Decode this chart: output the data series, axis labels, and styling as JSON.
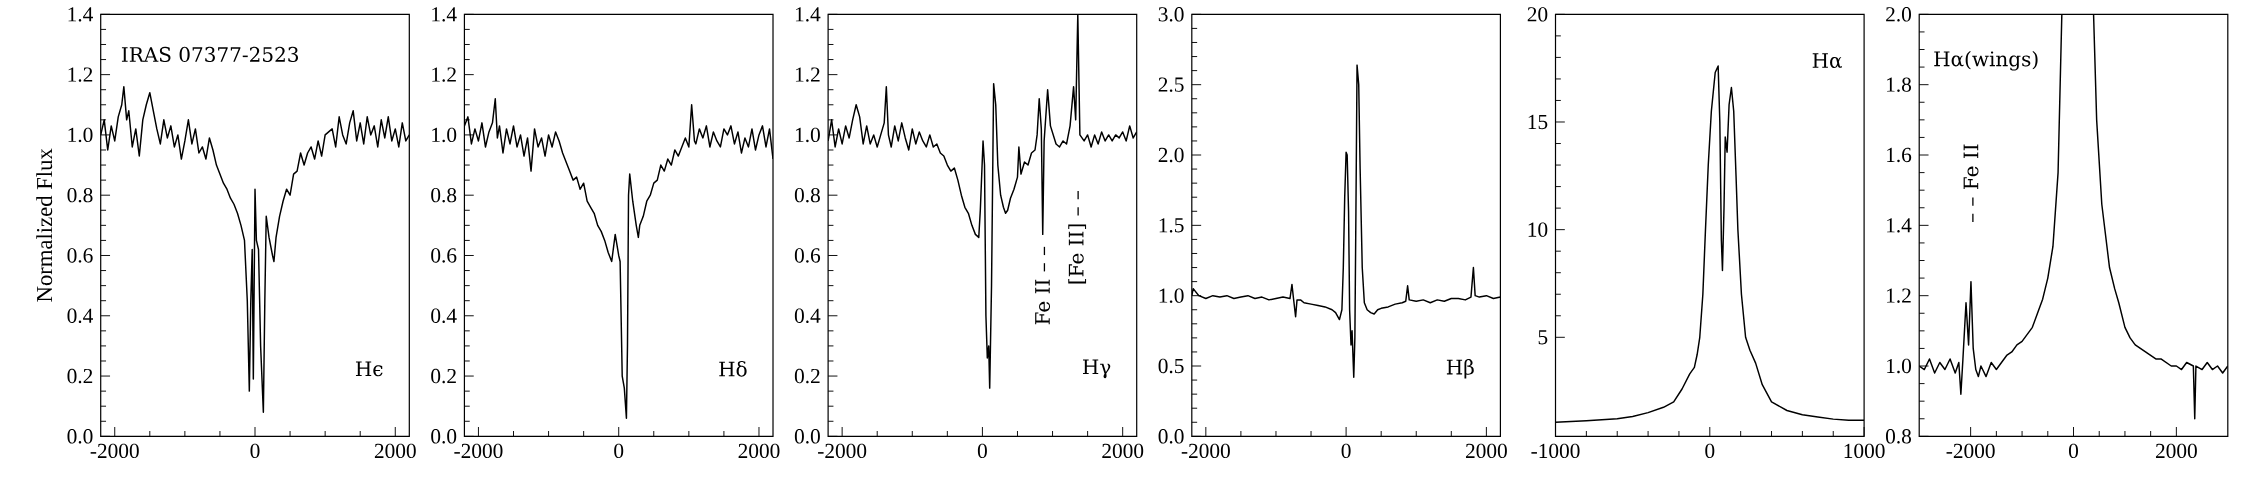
{
  "chart_data": [
    {
      "type": "line",
      "ylabel": "Normalized Flux",
      "color": "#000000",
      "xlim": [
        -2200,
        2200
      ],
      "ylim": [
        0,
        1.4
      ],
      "xticks": [
        -2000,
        0,
        2000
      ],
      "yticks": [
        {
          "value": 0,
          "label": "0.0"
        },
        0.2,
        0.4,
        0.6,
        0.8,
        {
          "value": 1,
          "label": "1.0"
        },
        1.2,
        1.4
      ],
      "annotations": [
        "IRAS 07377-2523",
        "Hϵ"
      ],
      "x": [
        -2200,
        -2150,
        -2100,
        -2050,
        -2000,
        -1950,
        -1900,
        -1870,
        -1830,
        -1800,
        -1750,
        -1700,
        -1650,
        -1600,
        -1550,
        -1500,
        -1450,
        -1400,
        -1350,
        -1300,
        -1250,
        -1200,
        -1150,
        -1100,
        -1050,
        -1000,
        -950,
        -900,
        -850,
        -800,
        -750,
        -700,
        -650,
        -600,
        -550,
        -500,
        -450,
        -400,
        -350,
        -300,
        -250,
        -200,
        -150,
        -110,
        -81,
        -60,
        -40,
        -24,
        0,
        20,
        50,
        80,
        119,
        140,
        160,
        200,
        250,
        270,
        300,
        350,
        400,
        450,
        500,
        550,
        600,
        650,
        700,
        750,
        800,
        850,
        900,
        950,
        1000,
        1100,
        1150,
        1200,
        1250,
        1300,
        1350,
        1400,
        1450,
        1500,
        1550,
        1600,
        1650,
        1700,
        1750,
        1800,
        1850,
        1900,
        1950,
        2000,
        2050,
        2100,
        2150,
        2200
      ],
      "values": [
        1.0,
        1.05,
        0.95,
        1.03,
        0.98,
        1.06,
        1.1,
        1.16,
        1.05,
        1.08,
        0.96,
        1.02,
        0.93,
        1.05,
        1.1,
        1.14,
        1.08,
        1.02,
        0.97,
        1.05,
        0.99,
        1.03,
        0.96,
        1.0,
        0.92,
        0.98,
        1.05,
        0.97,
        1.02,
        0.94,
        0.96,
        0.92,
        0.99,
        0.95,
        0.9,
        0.87,
        0.84,
        0.82,
        0.79,
        0.77,
        0.74,
        0.7,
        0.65,
        0.45,
        0.15,
        0.45,
        0.62,
        0.19,
        0.82,
        0.65,
        0.62,
        0.3,
        0.08,
        0.45,
        0.73,
        0.66,
        0.6,
        0.58,
        0.66,
        0.73,
        0.78,
        0.82,
        0.8,
        0.87,
        0.88,
        0.94,
        0.9,
        0.94,
        0.96,
        0.92,
        0.98,
        0.93,
        1.0,
        1.02,
        0.96,
        1.06,
        1.0,
        0.97,
        1.04,
        1.08,
        0.98,
        1.04,
        0.97,
        1.06,
        1.0,
        1.03,
        0.96,
        1.05,
        0.99,
        1.06,
        0.98,
        1.02,
        0.96,
        1.04,
        0.98,
        1.0
      ]
    },
    {
      "type": "line",
      "color": "#000000",
      "xlim": [
        -2200,
        2200
      ],
      "ylim": [
        0,
        1.4
      ],
      "xticks": [
        -2000,
        0,
        2000
      ],
      "yticks": [
        {
          "value": 0,
          "label": "0.0"
        },
        0.2,
        0.4,
        0.6,
        0.8,
        {
          "value": 1,
          "label": "1.0"
        },
        1.2,
        1.4
      ],
      "annotations": [
        "Hδ"
      ],
      "x": [
        -2200,
        -2150,
        -2100,
        -2050,
        -2000,
        -1950,
        -1900,
        -1850,
        -1800,
        -1760,
        -1730,
        -1700,
        -1650,
        -1600,
        -1550,
        -1500,
        -1450,
        -1400,
        -1350,
        -1300,
        -1250,
        -1200,
        -1150,
        -1100,
        -1050,
        -1000,
        -950,
        -900,
        -850,
        -800,
        -750,
        -700,
        -650,
        -600,
        -550,
        -500,
        -450,
        -400,
        -350,
        -300,
        -250,
        -200,
        -150,
        -100,
        -50,
        0,
        20,
        50,
        80,
        110,
        125,
        140,
        157,
        200,
        250,
        280,
        300,
        350,
        400,
        450,
        500,
        550,
        600,
        650,
        700,
        750,
        800,
        850,
        900,
        950,
        1000,
        1040,
        1080,
        1100,
        1150,
        1200,
        1250,
        1300,
        1350,
        1400,
        1450,
        1500,
        1550,
        1600,
        1650,
        1700,
        1750,
        1800,
        1850,
        1900,
        1950,
        2000,
        2050,
        2100,
        2150,
        2200
      ],
      "values": [
        1.03,
        1.06,
        0.97,
        1.02,
        0.98,
        1.04,
        0.96,
        1.01,
        1.04,
        1.12,
        0.99,
        1.03,
        0.94,
        1.02,
        0.97,
        1.03,
        0.96,
        1.0,
        0.93,
        0.99,
        0.88,
        1.02,
        0.96,
        0.99,
        0.93,
        1.0,
        0.96,
        1.01,
        0.98,
        0.94,
        0.91,
        0.88,
        0.85,
        0.86,
        0.82,
        0.84,
        0.78,
        0.76,
        0.74,
        0.7,
        0.68,
        0.65,
        0.61,
        0.58,
        0.67,
        0.6,
        0.58,
        0.2,
        0.16,
        0.06,
        0.3,
        0.8,
        0.87,
        0.78,
        0.7,
        0.66,
        0.7,
        0.73,
        0.78,
        0.8,
        0.84,
        0.85,
        0.9,
        0.88,
        0.92,
        0.9,
        0.95,
        0.93,
        0.96,
        0.99,
        0.96,
        1.1,
        0.98,
        0.97,
        1.02,
        0.99,
        1.03,
        0.96,
        1.01,
        0.98,
        0.96,
        1.02,
        1.0,
        1.03,
        0.97,
        1.01,
        0.94,
        0.99,
        0.96,
        1.02,
        0.95,
        1.0,
        1.03,
        0.96,
        1.02,
        0.92
      ]
    },
    {
      "type": "line",
      "color": "#000000",
      "xlim": [
        -2200,
        2200
      ],
      "ylim": [
        0,
        1.4
      ],
      "xticks": [
        -2000,
        0,
        2000
      ],
      "yticks": [
        {
          "value": 0,
          "label": "0.0"
        },
        0.2,
        0.4,
        0.6,
        0.8,
        {
          "value": 1,
          "label": "1.0"
        },
        1.2,
        1.4
      ],
      "annotations": [
        "Hγ",
        "Fe II – –",
        "[Fe II] – –"
      ],
      "x": [
        -2200,
        -2150,
        -2100,
        -2050,
        -2000,
        -1950,
        -1900,
        -1850,
        -1800,
        -1750,
        -1700,
        -1650,
        -1600,
        -1550,
        -1500,
        -1450,
        -1400,
        -1370,
        -1340,
        -1300,
        -1250,
        -1200,
        -1150,
        -1100,
        -1050,
        -1000,
        -950,
        -900,
        -850,
        -800,
        -750,
        -700,
        -650,
        -600,
        -550,
        -500,
        -450,
        -400,
        -350,
        -300,
        -250,
        -200,
        -150,
        -100,
        -52,
        -30,
        9,
        30,
        50,
        70,
        90,
        104,
        130,
        160,
        190,
        220,
        260,
        300,
        330,
        360,
        400,
        450,
        500,
        520,
        550,
        600,
        650,
        700,
        750,
        780,
        810,
        840,
        860,
        880,
        930,
        970,
        1050,
        1100,
        1150,
        1200,
        1250,
        1300,
        1330,
        1360,
        1390,
        1450,
        1500,
        1550,
        1600,
        1650,
        1700,
        1750,
        1800,
        1850,
        1900,
        1950,
        2000,
        2050,
        2100,
        2150,
        2200
      ],
      "values": [
        0.98,
        1.05,
        0.96,
        1.02,
        0.97,
        1.03,
        0.99,
        1.05,
        1.1,
        1.06,
        0.97,
        1.03,
        0.97,
        1.0,
        0.96,
        1.0,
        1.04,
        1.16,
        1.0,
        0.96,
        1.03,
        0.98,
        1.04,
        0.99,
        0.95,
        1.02,
        0.97,
        1.01,
        0.98,
        0.96,
        1.0,
        0.96,
        0.97,
        0.94,
        0.93,
        0.9,
        0.88,
        0.89,
        0.85,
        0.8,
        0.76,
        0.74,
        0.7,
        0.67,
        0.66,
        0.75,
        0.98,
        0.9,
        0.4,
        0.26,
        0.3,
        0.16,
        0.5,
        1.17,
        1.1,
        0.9,
        0.8,
        0.76,
        0.74,
        0.75,
        0.79,
        0.82,
        0.86,
        0.96,
        0.87,
        0.91,
        0.9,
        0.94,
        0.95,
        1.0,
        1.12,
        1.02,
        0.67,
        0.98,
        1.15,
        1.03,
        0.97,
        0.96,
        0.98,
        0.97,
        1.03,
        1.16,
        1.05,
        1.4,
        1.0,
        0.98,
        1.0,
        0.96,
        1.0,
        0.97,
        1.01,
        0.98,
        1.0,
        0.98,
        1.0,
        0.99,
        1.01,
        0.98,
        1.03,
        0.99,
        1.01
      ]
    },
    {
      "type": "line",
      "color": "#000000",
      "xlim": [
        -2200,
        2200
      ],
      "ylim": [
        0,
        3.0
      ],
      "xticks": [
        -2000,
        0,
        2000
      ],
      "yticks": [
        {
          "value": 0,
          "label": "0.0"
        },
        0.5,
        {
          "value": 1,
          "label": "1.0"
        },
        1.5,
        {
          "value": 2,
          "label": "2.0"
        },
        2.5,
        {
          "value": 3,
          "label": "3.0"
        }
      ],
      "annotations": [
        "Hβ"
      ],
      "x": [
        -2200,
        -2180,
        -2100,
        -2000,
        -1900,
        -1800,
        -1700,
        -1600,
        -1500,
        -1400,
        -1300,
        -1200,
        -1100,
        -1000,
        -900,
        -800,
        -772,
        -750,
        -720,
        -700,
        -650,
        -600,
        -500,
        -400,
        -300,
        -200,
        -150,
        -95,
        -60,
        -40,
        -20,
        0,
        15,
        35,
        50,
        70,
        85,
        109,
        125,
        140,
        156,
        180,
        200,
        230,
        260,
        300,
        350,
        400,
        450,
        500,
        600,
        700,
        800,
        850,
        877,
        900,
        1000,
        1100,
        1200,
        1300,
        1400,
        1500,
        1600,
        1700,
        1780,
        1815,
        1840,
        1900,
        2000,
        2100,
        2200
      ],
      "values": [
        1.0,
        1.05,
        1.0,
        0.98,
        1.0,
        0.99,
        1.0,
        0.98,
        0.99,
        1.0,
        0.98,
        0.99,
        0.97,
        0.98,
        0.99,
        0.98,
        1.08,
        0.98,
        0.85,
        0.97,
        0.97,
        0.95,
        0.94,
        0.93,
        0.92,
        0.9,
        0.88,
        0.83,
        0.9,
        1.2,
        1.7,
        2.02,
        2.0,
        1.6,
        0.9,
        0.65,
        0.75,
        0.42,
        0.7,
        1.6,
        2.64,
        2.5,
        1.9,
        1.2,
        0.95,
        0.9,
        0.88,
        0.87,
        0.9,
        0.91,
        0.92,
        0.94,
        0.95,
        0.96,
        1.07,
        0.97,
        0.96,
        0.97,
        0.95,
        0.97,
        0.96,
        0.98,
        0.98,
        0.97,
        0.99,
        1.2,
        1.0,
        0.99,
        1.0,
        0.98,
        0.99
      ]
    },
    {
      "type": "line",
      "color": "#000000",
      "xlim": [
        -1000,
        1000
      ],
      "ylim": [
        0.4,
        20
      ],
      "xticks": [
        -1000,
        0,
        1000
      ],
      "yticks": [
        5,
        10,
        15,
        20
      ],
      "annotations": [
        "Hα"
      ],
      "x": [
        -1000,
        -800,
        -600,
        -500,
        -400,
        -300,
        -234,
        -180,
        -130,
        -100,
        -82,
        -65,
        -45,
        -28,
        -10,
        10,
        35,
        54,
        65,
        75,
        82,
        92,
        100,
        112,
        125,
        140,
        155,
        170,
        182,
        205,
        232,
        260,
        297,
        340,
        400,
        500,
        600,
        700,
        800,
        900,
        1000
      ],
      "values": [
        1.05,
        1.12,
        1.22,
        1.32,
        1.5,
        1.75,
        2.0,
        2.6,
        3.3,
        3.6,
        4.2,
        5.0,
        7.0,
        10.0,
        13.0,
        15.5,
        17.3,
        17.6,
        15.0,
        9.5,
        8.1,
        11.0,
        14.3,
        13.6,
        15.8,
        16.6,
        15.5,
        12.5,
        10.0,
        7.0,
        5.0,
        4.4,
        3.8,
        2.8,
        2.0,
        1.6,
        1.4,
        1.3,
        1.2,
        1.15,
        1.15
      ]
    },
    {
      "type": "line",
      "color": "#000000",
      "xlim": [
        -3000,
        3000
      ],
      "ylim": [
        0.8,
        2.0
      ],
      "xticks": [
        -2000,
        0,
        2000
      ],
      "yticks": [
        0.8,
        {
          "value": 1,
          "label": "1.0"
        },
        1.2,
        1.4,
        1.6,
        1.8,
        {
          "value": 2,
          "label": "2.0"
        }
      ],
      "annotations": [
        "Hα(wings)",
        "– – Fe II"
      ],
      "x": [
        -3000,
        -2900,
        -2800,
        -2700,
        -2600,
        -2500,
        -2400,
        -2300,
        -2230,
        -2190,
        -2150,
        -2090,
        -2040,
        -1994,
        -1950,
        -1900,
        -1850,
        -1800,
        -1700,
        -1600,
        -1500,
        -1400,
        -1300,
        -1200,
        -1100,
        -1000,
        -900,
        -800,
        -700,
        -600,
        -500,
        -400,
        -300,
        -227,
        80,
        390,
        450,
        550,
        700,
        800,
        880,
        1000,
        1100,
        1200,
        1300,
        1400,
        1500,
        1600,
        1700,
        1800,
        1900,
        2000,
        2100,
        2200,
        2330,
        2357,
        2380,
        2500,
        2600,
        2700,
        2800,
        2900,
        3000
      ],
      "values": [
        1.0,
        0.99,
        1.02,
        0.98,
        1.01,
        0.99,
        1.02,
        0.98,
        1.01,
        0.92,
        1.02,
        1.18,
        1.06,
        1.24,
        1.05,
        0.99,
        0.97,
        1.0,
        0.97,
        1.01,
        0.99,
        1.01,
        1.03,
        1.04,
        1.06,
        1.07,
        1.09,
        1.11,
        1.15,
        1.19,
        1.25,
        1.34,
        1.55,
        2.0,
        null,
        2.0,
        1.7,
        1.46,
        1.28,
        1.22,
        1.18,
        1.11,
        1.08,
        1.06,
        1.05,
        1.04,
        1.03,
        1.02,
        1.02,
        1.01,
        1.0,
        1.0,
        0.99,
        1.01,
        1.0,
        0.85,
        1.0,
        0.99,
        1.01,
        0.99,
        1.0,
        0.98,
        1.0
      ]
    }
  ]
}
